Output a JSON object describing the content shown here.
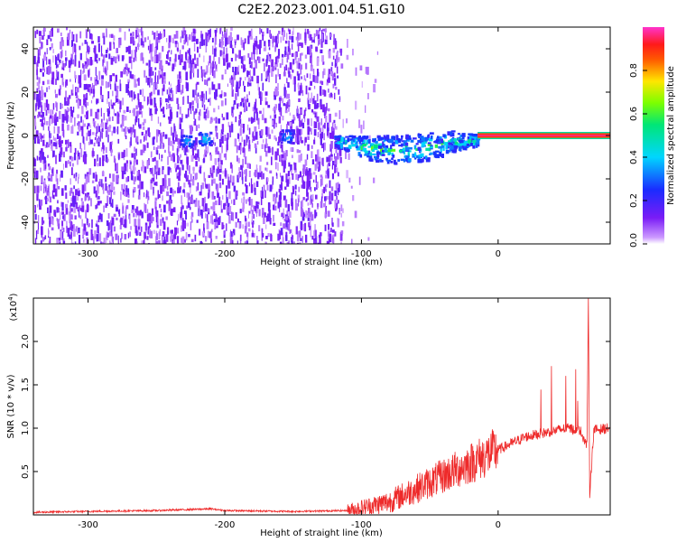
{
  "figure_title": "C2E2.2023.001.04.51.G10",
  "colors": {
    "snr_line": "#ee2a2a",
    "spectrogram_noise": "#7d2cf0",
    "frame": "#000000"
  },
  "chart_data": [
    {
      "type": "heatmap",
      "name": "spectrogram",
      "xlabel": "Height of straight line (km)",
      "ylabel": "Frequency (Hz)",
      "xlim": [
        -340,
        82
      ],
      "ylim": [
        -50,
        50
      ],
      "xticks": [
        -300,
        -200,
        -100,
        0
      ],
      "yticks": [
        -40,
        -20,
        0,
        20,
        40
      ],
      "colorbar": {
        "label": "Normalized spectral amplitude",
        "range": [
          0,
          1
        ],
        "ticks": [
          "0.0",
          "0.2",
          "0.4",
          "0.6",
          "0.8"
        ],
        "colormap": "rainbow: magenta/white (0) - blue - cyan - green - yellow - red - magenta (1)"
      },
      "features": [
        {
          "description": "diffuse noise region",
          "x_range": [
            -340,
            -115
          ],
          "y_range": [
            -50,
            50
          ],
          "amplitude": 0.12
        },
        {
          "description": "sparse noise",
          "x_range": [
            -115,
            -88
          ],
          "y_range": [
            -50,
            50
          ],
          "amplitude": 0.05
        },
        {
          "description": "signal blob",
          "x": -228,
          "y": -2,
          "amplitude": 0.3
        },
        {
          "description": "signal blob",
          "x": -215,
          "y": -1,
          "amplitude": 0.35
        },
        {
          "description": "signal blob",
          "x": -155,
          "y": 0,
          "amplitude": 0.3
        },
        {
          "description": "spreading signal",
          "x_range": [
            -120,
            -15
          ],
          "y_range": [
            -12,
            6
          ],
          "amplitude": 0.4
        },
        {
          "description": "strong carrier line",
          "x_range": [
            -15,
            82
          ],
          "y": 0,
          "amplitude": 0.95
        }
      ]
    },
    {
      "type": "line",
      "name": "snr",
      "xlabel": "Height of straight line (km)",
      "ylabel": "SNR (10 * v/v)",
      "y_multiplier_label": "(x10",
      "y_multiplier_exponent": "4",
      "y_multiplier_suffix": ")",
      "xlim": [
        -340,
        82
      ],
      "ylim": [
        0,
        2.5
      ],
      "xticks": [
        -300,
        -200,
        -100,
        0
      ],
      "ytick_labels": [
        "0.5",
        "1.0",
        "1.5",
        "2.0"
      ],
      "yticks": [
        0.5,
        1.0,
        1.5,
        2.0
      ],
      "series": [
        {
          "x": [
            -340,
            -300,
            -250,
            -210,
            -200,
            -150,
            -110,
            -100,
            -80,
            -60,
            -40,
            -20,
            0,
            20,
            35,
            50,
            60,
            65,
            66,
            67,
            70,
            82
          ],
          "y": [
            0.03,
            0.04,
            0.05,
            0.07,
            0.05,
            0.04,
            0.05,
            0.08,
            0.15,
            0.3,
            0.45,
            0.6,
            0.75,
            0.9,
            0.95,
            1.0,
            0.98,
            0.8,
            2.45,
            0.25,
            0.98,
            1.0
          ]
        }
      ]
    }
  ]
}
